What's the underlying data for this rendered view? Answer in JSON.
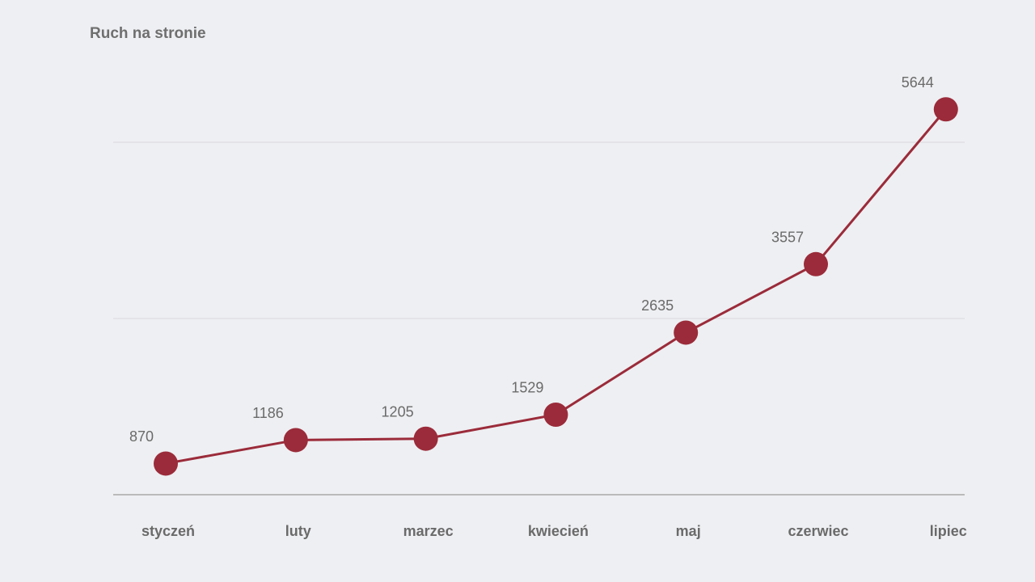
{
  "chart_data": {
    "type": "line",
    "title": "Ruch na stronie",
    "categories": [
      "styczeń",
      "luty",
      "marzec",
      "kwiecień",
      "maj",
      "czerwiec",
      "lipiec"
    ],
    "values": [
      870,
      1186,
      1205,
      1529,
      2635,
      3557,
      5644
    ],
    "color": "#9b2b3a",
    "ylim": [
      450,
      5200
    ],
    "yticks": [
      450,
      2825,
      5200
    ],
    "grid": true,
    "show_tick_labels": false
  }
}
